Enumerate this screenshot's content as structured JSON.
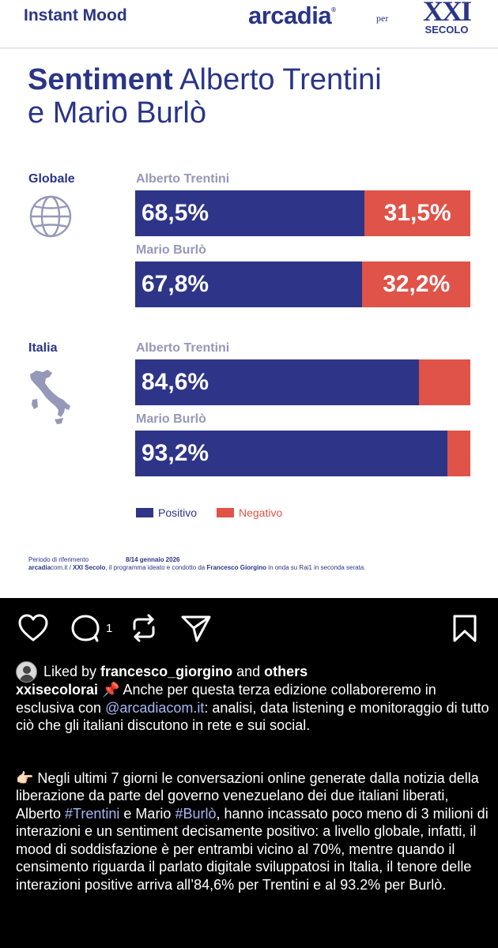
{
  "header": {
    "left": "Instant Mood",
    "brand": "arcadia",
    "per": "per",
    "partner_top": "XXI",
    "partner_bottom": "SECOLO"
  },
  "title": {
    "bold": "Sentiment",
    "rest_line1": " Alberto Trentini",
    "line2": "e Mario Burlò"
  },
  "chart_data": {
    "type": "bar",
    "stacked": true,
    "orientation": "horizontal",
    "groups": [
      {
        "label": "Globale",
        "rows": [
          {
            "name": "Alberto Trentini",
            "positive": 68.5,
            "negative": 31.5,
            "positive_label": "68,5%",
            "negative_label": "31,5%"
          },
          {
            "name": "Mario Burlò",
            "positive": 67.8,
            "negative": 32.2,
            "positive_label": "67,8%",
            "negative_label": "32,2%"
          }
        ]
      },
      {
        "label": "Italia",
        "rows": [
          {
            "name": "Alberto Trentini",
            "positive": 84.6,
            "negative": 15.4,
            "positive_label": "84,6%",
            "negative_label": ""
          },
          {
            "name": "Mario Burlò",
            "positive": 93.2,
            "negative": 6.8,
            "positive_label": "93,2%",
            "negative_label": ""
          }
        ]
      }
    ],
    "legend": [
      {
        "name": "Positivo",
        "color": "#2e3588"
      },
      {
        "name": "Negativo",
        "color": "#df5348"
      }
    ],
    "legend_position": "bottom-left"
  },
  "footer": {
    "period_label": "Periodo di riferimento",
    "period_value": "8/14 gennaio 2026",
    "credit_bold1": "arcadia",
    "credit_1": "com.it / ",
    "credit_bold2": "XXI Secolo",
    "credit_2": ", il programma ideato e condotto da ",
    "credit_bold3": "Francesco Giorgino",
    "credit_3": " in onda su Rai1 in seconda serata."
  },
  "actions": {
    "comment_count": "1",
    "icons": [
      "heart-icon",
      "comment-icon",
      "repost-icon",
      "share-icon",
      "bookmark-icon"
    ]
  },
  "likes": {
    "prefix": "Liked by",
    "user": "francesco_giorgino",
    "and": "and",
    "others": "others"
  },
  "caption": {
    "username": "xxisecolorai",
    "emoji1": "📌",
    "p1_a": " Anche per questa terza edizione collaboreremo in esclusiva con ",
    "mention": "@arcadiacom.it",
    "p1_b": ": analisi, data listening e monitoraggio di tutto ciò che gli italiani discutono in rete e sui social.",
    "emoji2": "👉🏻",
    "p2_a": " Negli ultimi 7 giorni le conversazioni online generate dalla notizia della liberazione da parte del governo venezuelano dei due italiani liberati, Alberto ",
    "tag1": "#Trentini",
    "p2_b": " e Mario ",
    "tag2": "#Burlò",
    "p2_c": ", hanno incassato poco meno di 3 milioni di interazioni e un sentiment decisamente positivo: a livello globale, infatti, il mood di soddisfazione è per entrambi vicino al 70%, mentre quando il censimento riguarda il parlato digitale sviluppatosi in Italia, il tenore delle interazioni positive arriva all’84,6% per Trentini e al 93.2% per Burlò."
  },
  "colors": {
    "navy": "#2e3588",
    "red": "#df5348",
    "link": "#a5b7f5"
  }
}
